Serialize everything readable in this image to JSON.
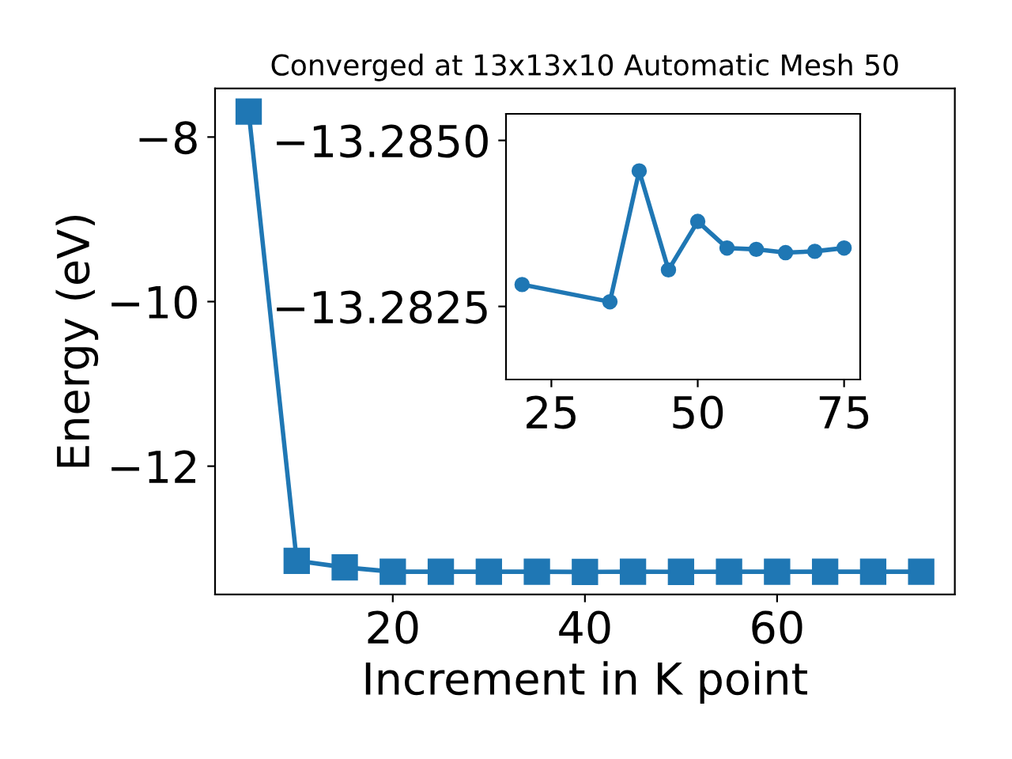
{
  "chart_data": [
    {
      "type": "line",
      "title": "Converged at 13x13x10 Automatic Mesh 50",
      "xlabel": "Increment in K point",
      "ylabel": "Energy (eV)",
      "x": [
        5,
        10,
        15,
        20,
        25,
        30,
        35,
        40,
        45,
        50,
        55,
        60,
        65,
        70,
        75
      ],
      "series": [
        {
          "color": "#1f77b4",
          "values": [
            -7.69,
            -13.15,
            -13.23,
            -13.283,
            -13.283,
            -13.283,
            -13.283,
            -13.285,
            -13.283,
            -13.284,
            -13.283,
            -13.283,
            -13.283,
            -13.283,
            -13.283
          ]
        }
      ],
      "xlim": [
        1.5,
        78.5
      ],
      "ylim": [
        -13.56,
        -7.41
      ],
      "xticks": [
        20,
        40,
        60
      ],
      "yticks": [
        {
          "value": -12,
          "label": "−12"
        },
        {
          "value": -10,
          "label": "−10"
        },
        {
          "value": -8,
          "label": "−8"
        }
      ],
      "marker": "square",
      "line_style": "solid",
      "grid": false,
      "legend": false
    },
    {
      "type": "line",
      "x": [
        20,
        35,
        40,
        45,
        50,
        55,
        60,
        65,
        70,
        75
      ],
      "series": [
        {
          "color": "#1f77b4",
          "values": [
            -13.28283,
            -13.28257,
            -13.28454,
            -13.28305,
            -13.28378,
            -13.28338,
            -13.28336,
            -13.28331,
            -13.28333,
            -13.28338
          ]
        }
      ],
      "xlim": [
        17.25,
        77.75
      ],
      "ylim": [
        -13.2814,
        -13.2854
      ],
      "xticks": [
        25,
        50,
        75
      ],
      "yticks": [
        {
          "value": -13.2825,
          "label": "−13.2825"
        },
        {
          "value": -13.285,
          "label": "−13.2850"
        }
      ],
      "marker": "circle",
      "line_style": "solid",
      "grid": false,
      "legend": false
    }
  ]
}
